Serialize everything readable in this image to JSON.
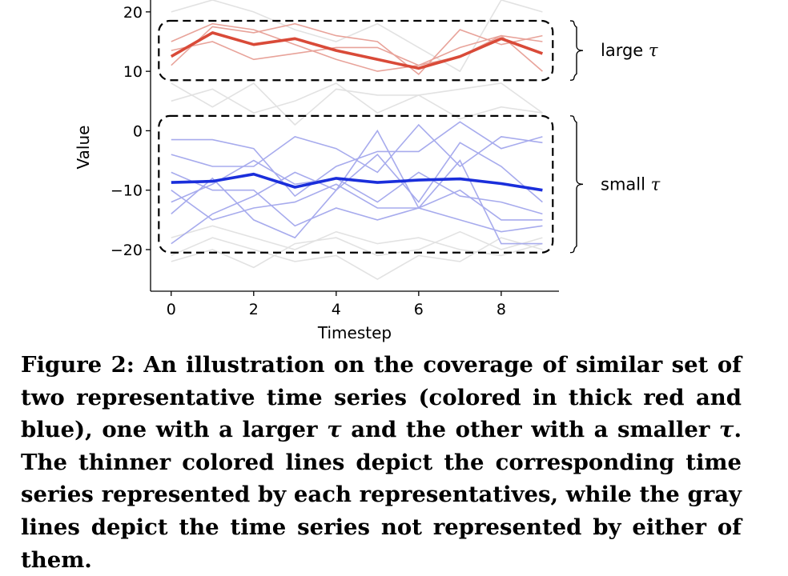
{
  "chart_data": {
    "type": "line",
    "xlabel": "Timestep",
    "ylabel": "Value",
    "xlim": [
      -0.5,
      9.4
    ],
    "ylim": [
      -27,
      22
    ],
    "xticks": [
      0,
      2,
      4,
      6,
      8
    ],
    "yticks": [
      20,
      10,
      0,
      -10,
      -20
    ],
    "x": [
      0,
      1,
      2,
      3,
      4,
      5,
      6,
      7,
      8,
      9
    ],
    "representatives": [
      {
        "group": "large",
        "color": "#d94a38",
        "values": [
          12.5,
          16.5,
          14.5,
          15.5,
          13.5,
          12.0,
          10.5,
          12.5,
          15.5,
          13.0
        ]
      },
      {
        "group": "small",
        "color": "#1a2edb",
        "values": [
          -8.7,
          -8.5,
          -7.3,
          -9.5,
          -8.0,
          -8.7,
          -8.3,
          -8.1,
          -8.9,
          -10.0
        ]
      }
    ],
    "members": [
      {
        "group": "large",
        "color": "#e8a39a",
        "values": [
          11.0,
          17.5,
          16.5,
          18.0,
          16.0,
          15.0,
          9.5,
          17.0,
          14.5,
          16.0
        ]
      },
      {
        "group": "large",
        "color": "#e8a39a",
        "values": [
          13.5,
          15.0,
          12.0,
          13.0,
          14.0,
          14.0,
          11.0,
          12.5,
          16.0,
          15.0
        ]
      },
      {
        "group": "large",
        "color": "#e8a39a",
        "values": [
          15.0,
          18.0,
          17.0,
          14.5,
          12.0,
          10.0,
          11.0,
          14.0,
          16.0,
          10.0
        ]
      },
      {
        "group": "small",
        "color": "#a7abed",
        "values": [
          -1.5,
          -1.5,
          -3.0,
          -11.0,
          -6.0,
          -3.5,
          -3.5,
          1.5,
          -3.0,
          -1.0
        ]
      },
      {
        "group": "small",
        "color": "#a7abed",
        "values": [
          -4.0,
          -6.0,
          -6.0,
          -1.0,
          -3.0,
          -7.0,
          1.0,
          -6.0,
          -1.0,
          -2.0
        ]
      },
      {
        "group": "small",
        "color": "#a7abed",
        "values": [
          -19.0,
          -14.0,
          -11.0,
          -7.0,
          -10.0,
          -4.0,
          -12.0,
          -2.0,
          -6.0,
          -12.0
        ]
      },
      {
        "group": "small",
        "color": "#a7abed",
        "values": [
          -10.0,
          -15.0,
          -13.0,
          -12.0,
          -9.0,
          -13.0,
          -13.0,
          -10.0,
          -15.0,
          -15.0
        ]
      },
      {
        "group": "small",
        "color": "#a7abed",
        "values": [
          -7.0,
          -10.0,
          -10.0,
          -16.0,
          -13.0,
          -15.0,
          -13.0,
          -15.0,
          -17.0,
          -16.0
        ]
      },
      {
        "group": "small",
        "color": "#a7abed",
        "values": [
          -12.0,
          -9.0,
          -5.0,
          -9.0,
          -8.0,
          -12.0,
          -7.0,
          -11.0,
          -12.0,
          -14.0
        ]
      },
      {
        "group": "small",
        "color": "#a7abed",
        "values": [
          -14.0,
          -8.0,
          -15.0,
          -18.0,
          -10.0,
          0.0,
          -13.0,
          -5.0,
          -19.0,
          -19.0
        ]
      }
    ],
    "others": [
      {
        "color": "#e2e2e2",
        "values": [
          20.0,
          22.0,
          20.0,
          17.0,
          15.0,
          18.0,
          14.0,
          10.0,
          22.0,
          20.0
        ]
      },
      {
        "color": "#e2e2e2",
        "values": [
          8.0,
          4.0,
          8.0,
          1.0,
          7.0,
          6.0,
          6.0,
          2.0,
          4.0,
          3.0
        ]
      },
      {
        "color": "#e2e2e2",
        "values": [
          5.0,
          7.0,
          3.0,
          5.0,
          8.0,
          3.0,
          6.0,
          7.0,
          8.0,
          3.0
        ]
      },
      {
        "color": "#e2e2e2",
        "values": [
          -21.0,
          -18.0,
          -20.0,
          -22.0,
          -21.0,
          -25.0,
          -21.0,
          -22.0,
          -18.0,
          -20.0
        ]
      },
      {
        "color": "#e2e2e2",
        "values": [
          -18.0,
          -16.0,
          -18.0,
          -20.0,
          -17.0,
          -19.0,
          -18.0,
          -20.0,
          -21.0,
          -19.0
        ]
      },
      {
        "color": "#e2e2e2",
        "values": [
          -22.0,
          -20.0,
          -23.0,
          -19.0,
          -18.0,
          -21.0,
          -20.0,
          -17.0,
          -20.0,
          -18.0
        ]
      }
    ],
    "groups": [
      {
        "id": "large",
        "label_text": "large ",
        "label_symbol": "τ",
        "box_ylim": [
          8.5,
          18.5
        ]
      },
      {
        "id": "small",
        "label_text": "small ",
        "label_symbol": "τ",
        "box_ylim": [
          -20.5,
          2.5
        ]
      }
    ]
  },
  "caption": {
    "part1": "Figure 2: An illustration on the coverage of similar set of two representative time series (colored in thick red and blue), one with a larger ",
    "tau1": "τ",
    "part2": " and the other with a smaller ",
    "tau2": "τ",
    "part3": ". The thinner colored lines depict the corresponding time series represented by each representatives, while the gray lines depict the time series not represented by either of them."
  }
}
